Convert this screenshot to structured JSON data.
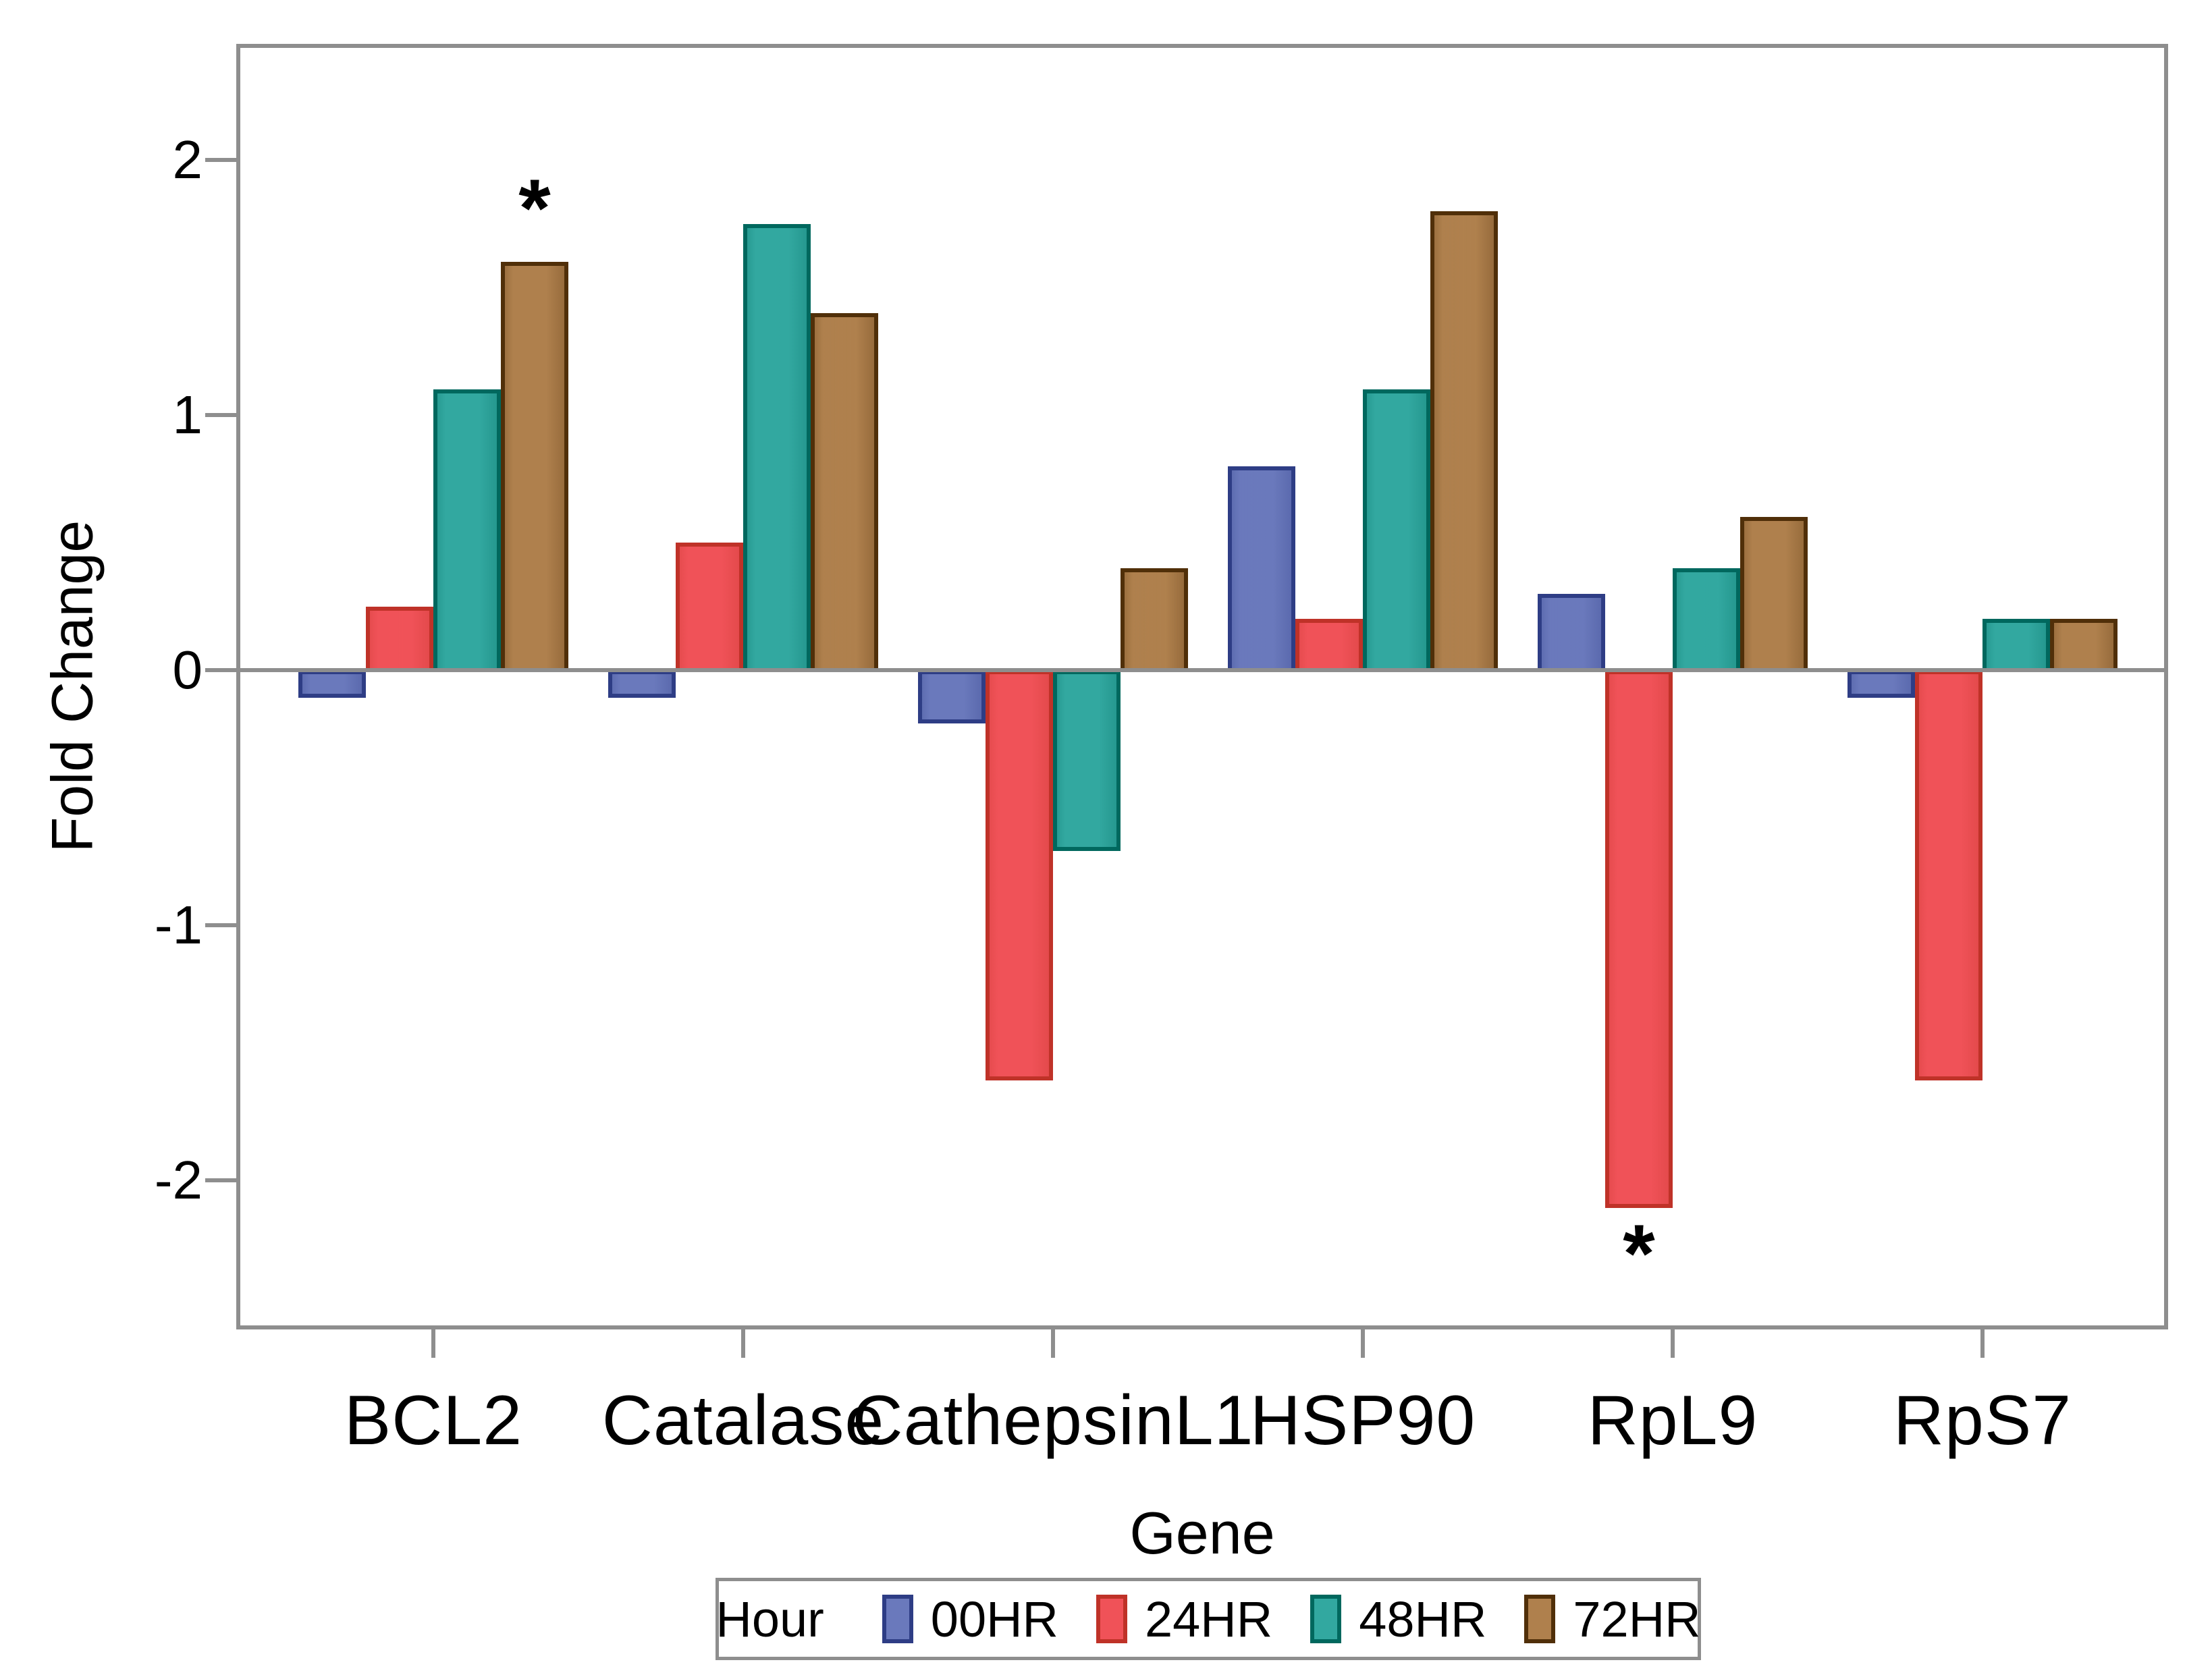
{
  "legend": {
    "title": "Hour"
  },
  "chart_data": {
    "type": "bar",
    "title": "",
    "categories": [
      "BCL2",
      "Catalase",
      "CathepsinL1",
      "HSP90",
      "RpL9",
      "RpS7"
    ],
    "series": [
      {
        "name": "00HR",
        "fill": "#6A79BC",
        "edge": "#2E3D85",
        "values": [
          -0.1,
          -0.1,
          -0.2,
          0.8,
          0.3,
          -0.1
        ]
      },
      {
        "name": "24HR",
        "fill": "#F05258",
        "edge": "#BF3228",
        "values": [
          0.25,
          0.5,
          -1.6,
          0.2,
          -2.1,
          -1.6
        ]
      },
      {
        "name": "48HR",
        "fill": "#32A8A0",
        "edge": "#00685E",
        "values": [
          1.1,
          1.75,
          -0.7,
          1.1,
          0.4,
          0.2
        ]
      },
      {
        "name": "72HR",
        "fill": "#AF804D",
        "edge": "#502F09",
        "values": [
          1.6,
          1.4,
          0.4,
          1.8,
          0.6,
          0.2
        ]
      }
    ],
    "annotations": [
      {
        "category": "BCL2",
        "series": "72HR",
        "symbol": "*",
        "position": "above"
      },
      {
        "category": "RpL9",
        "series": "24HR",
        "symbol": "*",
        "position": "below"
      }
    ],
    "xlabel": "Gene",
    "ylabel": "Fold Change",
    "yticks": [
      {
        "value": 2,
        "label": "2"
      },
      {
        "value": 1,
        "label": "1"
      },
      {
        "value": 0,
        "label": "0"
      },
      {
        "value": -1,
        "label": "-1"
      },
      {
        "value": -2,
        "label": "-2"
      }
    ],
    "ylim": [
      -2.58,
      2.46
    ],
    "grid": false,
    "legend_position": "bottom",
    "axis_color": "#8E8E8E"
  }
}
